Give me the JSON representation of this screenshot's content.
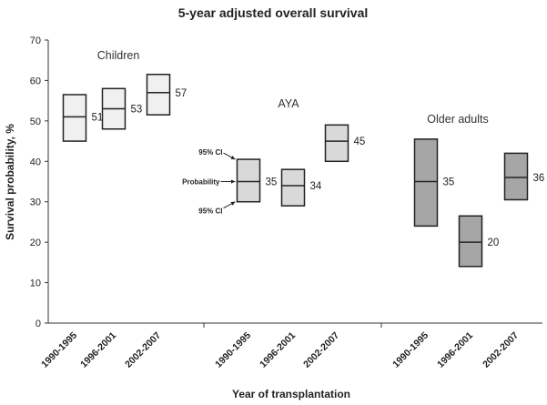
{
  "chart_data": {
    "type": "box",
    "title": "5-year adjusted overall survival",
    "xlabel": "Year of transplantation",
    "ylabel": "Survival probability, %",
    "ylim": [
      0,
      70
    ],
    "yticks": [
      0,
      10,
      20,
      30,
      40,
      50,
      60,
      70
    ],
    "groups": [
      {
        "name": "Children",
        "color": "#f0f0f0",
        "items": [
          {
            "period": "1990-1995",
            "estimate": 51,
            "ci_low": 45,
            "ci_high": 56.5
          },
          {
            "period": "1996-2001",
            "estimate": 53,
            "ci_low": 48,
            "ci_high": 58
          },
          {
            "period": "2002-2007",
            "estimate": 57,
            "ci_low": 51.5,
            "ci_high": 61.5
          }
        ]
      },
      {
        "name": "AYA",
        "color": "#d9d9d9",
        "items": [
          {
            "period": "1990-1995",
            "estimate": 35,
            "ci_low": 30,
            "ci_high": 40.5
          },
          {
            "period": "1996-2001",
            "estimate": 34,
            "ci_low": 29,
            "ci_high": 38
          },
          {
            "period": "2002-2007",
            "estimate": 45,
            "ci_low": 40,
            "ci_high": 49
          }
        ]
      },
      {
        "name": "Older adults",
        "color": "#a6a6a6",
        "items": [
          {
            "period": "1990-1995",
            "estimate": 35,
            "ci_low": 24,
            "ci_high": 45.5
          },
          {
            "period": "1996-2001",
            "estimate": 20,
            "ci_low": 14,
            "ci_high": 26.5
          },
          {
            "period": "2002-2007",
            "estimate": 36,
            "ci_low": 30.5,
            "ci_high": 42
          }
        ]
      }
    ],
    "annotations": {
      "upper_ci": "95% CI",
      "probability": "Probability",
      "lower_ci": "95% CI"
    }
  }
}
